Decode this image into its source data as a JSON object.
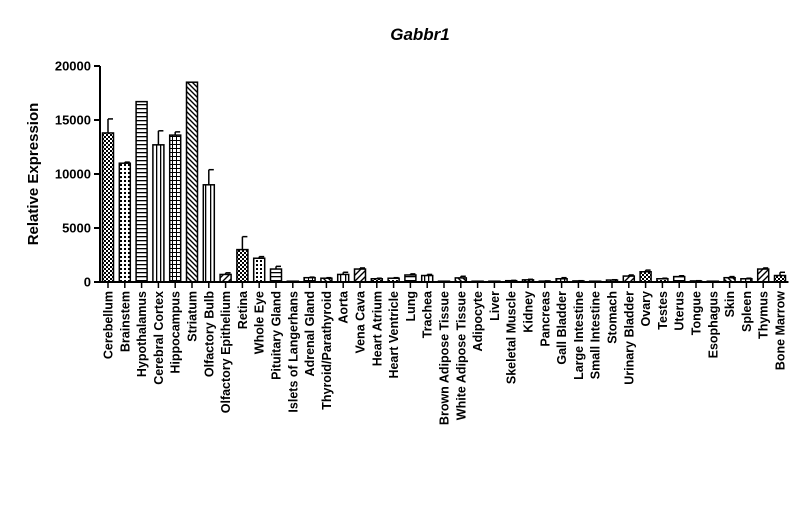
{
  "chart_data": {
    "type": "bar",
    "title": "Gabbr1",
    "xlabel": "",
    "ylabel": "Relative Expression",
    "ylim": [
      0,
      20000
    ],
    "yticks": [
      0,
      5000,
      10000,
      15000,
      20000
    ],
    "error_bars": true,
    "bar_style": "patterned black-outlined bars",
    "categories": [
      "Cerebellum",
      "Brainstem",
      "Hypothalamus",
      "Cerebral Cortex",
      "Hippocampus",
      "Striatum",
      "Olfactory Bulb",
      "Olfactory Epithelium",
      "Retina",
      "Whole Eye",
      "Pituitary Gland",
      "Islets of Langerhans",
      "Adrenal Gland",
      "Thyroid/Parathyroid",
      "Aorta",
      "Vena Cava",
      "Heart Atrium",
      "Heart Ventricle",
      "Lung",
      "Trachea",
      "Brown Adipose Tissue",
      "White Adipose Tissue",
      "Adipocyte",
      "Liver",
      "Skeletal Muscle",
      "Kidney",
      "Pancreas",
      "Gall Bladder",
      "Large Intestine",
      "Small Intestine",
      "Stomach",
      "Urinary Bladder",
      "Ovary",
      "Testes",
      "Uterus",
      "Tongue",
      "Esophagus",
      "Skin",
      "Spleen",
      "Thymus",
      "Bone Marrow"
    ],
    "values": [
      13800,
      11000,
      16700,
      12700,
      13600,
      18500,
      9000,
      700,
      3000,
      2200,
      1200,
      50,
      400,
      350,
      700,
      1200,
      300,
      350,
      650,
      600,
      40,
      380,
      40,
      20,
      120,
      200,
      80,
      300,
      100,
      40,
      180,
      550,
      950,
      300,
      500,
      100,
      60,
      400,
      300,
      1200,
      600
    ],
    "errors": [
      1300,
      100,
      0,
      1300,
      300,
      0,
      1400,
      150,
      1200,
      150,
      250,
      0,
      50,
      50,
      200,
      100,
      50,
      50,
      100,
      100,
      0,
      150,
      0,
      0,
      30,
      50,
      20,
      100,
      20,
      0,
      30,
      100,
      150,
      50,
      80,
      20,
      10,
      100,
      50,
      100,
      300
    ]
  }
}
